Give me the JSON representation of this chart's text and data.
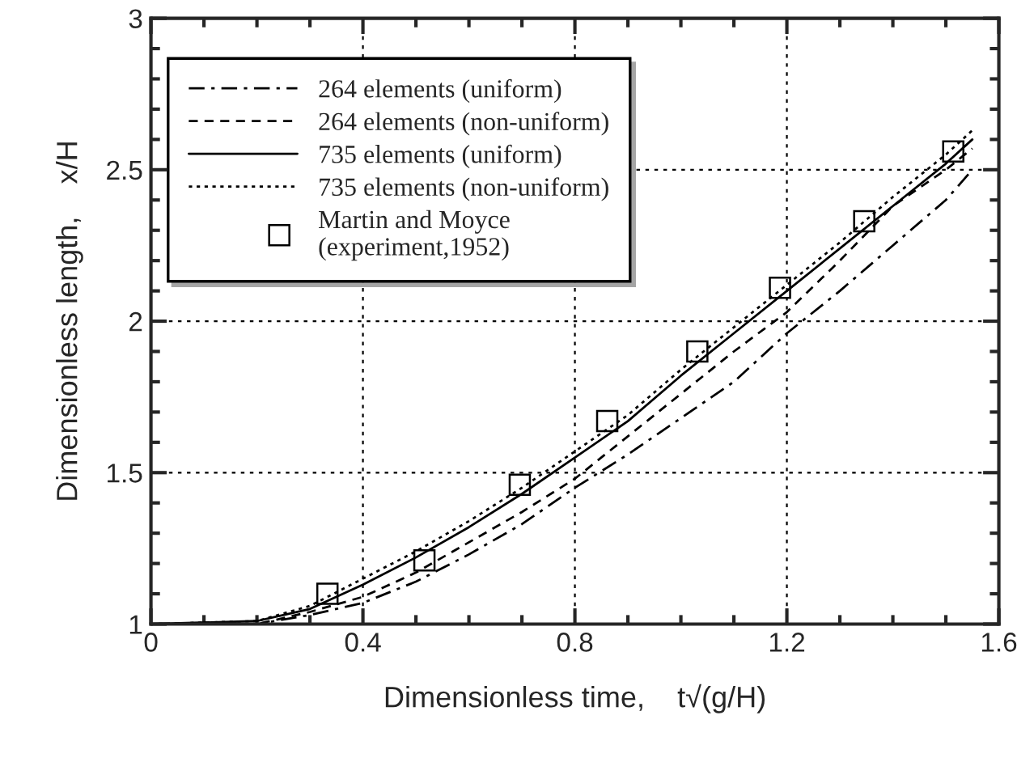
{
  "chart_data": {
    "type": "line",
    "xlabel": "Dimensionless time,    t√(g/H)",
    "ylabel": "Dimensionless length,    x/H",
    "xlim": [
      0,
      1.6
    ],
    "ylim": [
      1,
      3
    ],
    "xticks": [
      0,
      0.4,
      0.8,
      1.2,
      1.6
    ],
    "yticks": [
      1,
      1.5,
      2,
      2.5,
      3
    ],
    "grid": true,
    "legend": "top left",
    "series": [
      {
        "name": "264 elements (uniform)",
        "color": "#000000",
        "line_style": "dashdot",
        "x": [
          0,
          0.2,
          0.3,
          0.4,
          0.5,
          0.6,
          0.7,
          0.8,
          0.9,
          1.0,
          1.1,
          1.2,
          1.3,
          1.4,
          1.5,
          1.55
        ],
        "values": [
          1,
          1.0,
          1.03,
          1.07,
          1.14,
          1.23,
          1.33,
          1.45,
          1.56,
          1.68,
          1.8,
          1.96,
          2.1,
          2.25,
          2.4,
          2.5
        ]
      },
      {
        "name": "264 elements (non-uniform)",
        "color": "#000000",
        "line_style": "dashed",
        "x": [
          0,
          0.2,
          0.3,
          0.4,
          0.5,
          0.6,
          0.7,
          0.8,
          0.9,
          1.0,
          1.1,
          1.2,
          1.3,
          1.4,
          1.5,
          1.55
        ],
        "values": [
          1,
          1.0,
          1.04,
          1.09,
          1.17,
          1.27,
          1.37,
          1.48,
          1.62,
          1.76,
          1.9,
          2.03,
          2.2,
          2.38,
          2.5,
          2.57
        ]
      },
      {
        "name": "735 elements (uniform)",
        "color": "#000000",
        "line_style": "solid",
        "x": [
          0,
          0.2,
          0.3,
          0.4,
          0.5,
          0.6,
          0.7,
          0.8,
          0.9,
          1.0,
          1.1,
          1.2,
          1.3,
          1.4,
          1.5,
          1.55
        ],
        "values": [
          1,
          1.01,
          1.05,
          1.13,
          1.22,
          1.32,
          1.43,
          1.55,
          1.67,
          1.82,
          1.96,
          2.1,
          2.24,
          2.38,
          2.52,
          2.6
        ]
      },
      {
        "name": "735 elements (non-uniform)",
        "color": "#000000",
        "line_style": "dotted",
        "x": [
          0,
          0.2,
          0.3,
          0.4,
          0.5,
          0.6,
          0.7,
          0.8,
          0.9,
          1.0,
          1.1,
          1.2,
          1.3,
          1.4,
          1.5,
          1.55
        ],
        "values": [
          1,
          1.01,
          1.06,
          1.15,
          1.24,
          1.34,
          1.45,
          1.57,
          1.69,
          1.84,
          1.98,
          2.12,
          2.26,
          2.41,
          2.55,
          2.63
        ]
      },
      {
        "name": "Martin and Moyce\n(experiment,1952)",
        "color": "#000000",
        "type": "scatter",
        "marker": "square",
        "x": [
          0.333,
          0.516,
          0.696,
          0.861,
          1.031,
          1.187,
          1.346,
          1.514
        ],
        "values": [
          1.1,
          1.21,
          1.46,
          1.67,
          1.9,
          2.11,
          2.33,
          2.56
        ]
      }
    ]
  }
}
